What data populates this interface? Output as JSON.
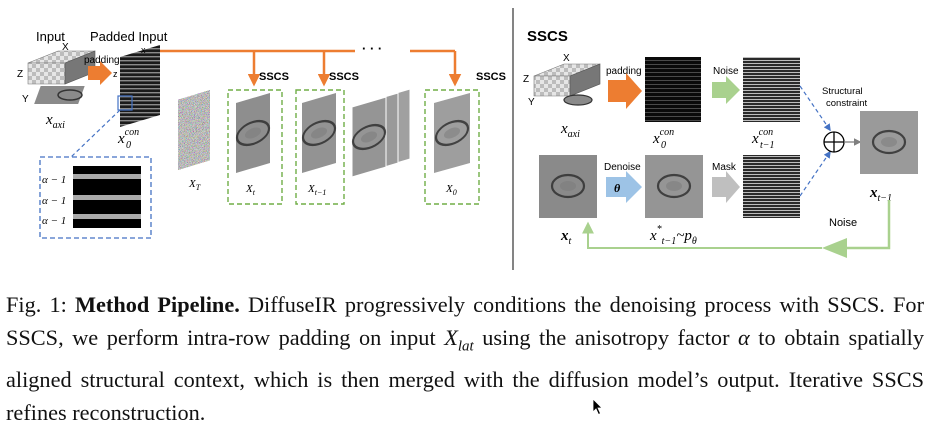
{
  "left_panel": {
    "input_label": "Input",
    "padded_input_label": "Padded Input",
    "padding_label": "padding",
    "axis_x": "X",
    "axis_y": "Y",
    "axis_z": "Z",
    "axis_x_small": "x",
    "axis_z_small": "z",
    "x_axi": "x",
    "x_axi_sub": "axi",
    "x0con_base": "x",
    "x0con_sub": "0",
    "x0con_sup": "con",
    "alpha_rows": [
      "α − 1",
      "α − 1",
      "α − 1"
    ],
    "xT": "X",
    "xT_sub": "T",
    "xt": "X",
    "xt_sub": "t",
    "xt1": "X",
    "xt1_sub": "t−1",
    "x0": "X",
    "x0_sub": "0",
    "sscs_labels": [
      "SSCS",
      "SSCS",
      "SSCS"
    ],
    "dots": "· · ·"
  },
  "right_panel": {
    "title": "SSCS",
    "padding_label": "padding",
    "noise_label": "Noise",
    "structural_constraint_line1": "Structural",
    "structural_constraint_line2": "constraint",
    "denoise_label": "Denoise",
    "theta_label": "θ",
    "mask_label": "Mask",
    "noise_bottom_label": "Noise",
    "axis_x": "X",
    "axis_y": "Y",
    "axis_z": "Z",
    "x_axi": "x",
    "x_axi_sub": "axi",
    "x0con_base": "x",
    "x0con_sub": "0",
    "x0con_sup": "con",
    "xt1con_base": "x",
    "xt1con_sub": "t−1",
    "xt1con_sup": "con",
    "xt1_base": "x",
    "xt1_sub": "t−1",
    "xt_base": "x",
    "xt_sub": "t",
    "xstar_base": "x",
    "xstar_sub": "t−1",
    "xstar_sup": "*",
    "xstar_tail": "~p",
    "xstar_tail_sub": "θ"
  },
  "caption": {
    "prefix": "Fig. 1: ",
    "bold": "Method Pipeline.",
    "s1": " DiffuseIR progressively conditions the denoising process with SSCS. For SSCS, we perform intra-row padding on input ",
    "var_base": "X",
    "var_sub": "lat",
    "s2": " using the anisotropy factor ",
    "alpha": "α",
    "s3": " to obtain spatially aligned structural context, which is then merged with the diffusion model’s output. Iterative SSCS refines reconstruction."
  },
  "colors": {
    "orange": "#ed7d31",
    "green_dash": "#70ad47",
    "light_green": "#a9d18e",
    "blue_dash": "#4472c4",
    "theta_blue": "#9dc3e6",
    "mask_gray": "#bfbfbf"
  }
}
